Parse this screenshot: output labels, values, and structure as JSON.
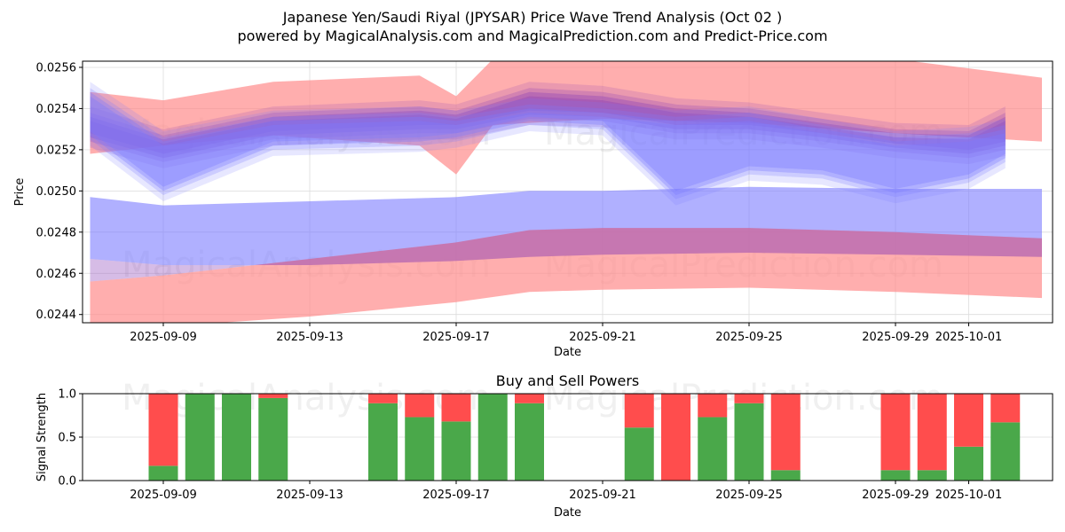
{
  "header": {
    "title": "Japanese Yen/Saudi Riyal (JPYSAR) Price Wave Trend Analysis (Oct 02 )",
    "subtitle": "powered by MagicalAnalysis.com and MagicalPrediction.com and Predict-Price.com"
  },
  "watermarks": [
    "MagicalAnalysis.com",
    "MagicalPrediction.com"
  ],
  "colors": {
    "buy": "#4aa84a",
    "sell": "#ff4d4d",
    "blue_band": "#7b7bff",
    "red_band": "#ff8c8c",
    "purple_band": "#8a3fb8",
    "grid": "#dcdcdc"
  },
  "chart_data": [
    {
      "type": "area",
      "title": "",
      "xlabel": "Date",
      "ylabel": "Price",
      "ylim": [
        0.02436,
        0.02563
      ],
      "xlim": [
        "2025-09-06T20:00",
        "2025-10-03T20:00"
      ],
      "grid": true,
      "y_ticks": [
        "0.0244",
        "0.0246",
        "0.0248",
        "0.0250",
        "0.0252",
        "0.0254",
        "0.0256"
      ],
      "y_tick_values": [
        0.0244,
        0.0246,
        0.0248,
        0.025,
        0.0252,
        0.0254,
        0.0256
      ],
      "x_ticks": [
        "2025-09-09",
        "2025-09-13",
        "2025-09-17",
        "2025-09-21",
        "2025-09-25",
        "2025-09-29",
        "2025-10-01"
      ],
      "bands": [
        {
          "name": "long-term blue channel",
          "color": "blue",
          "x": [
            "2025-09-07",
            "2025-09-09",
            "2025-09-13",
            "2025-09-17",
            "2025-09-19",
            "2025-09-21",
            "2025-09-25",
            "2025-09-29",
            "2025-10-03"
          ],
          "upper": [
            0.02497,
            0.02493,
            0.02495,
            0.02497,
            0.025,
            0.025,
            0.02502,
            0.02501,
            0.02501
          ],
          "lower": [
            0.02467,
            0.02464,
            0.02464,
            0.02466,
            0.02468,
            0.02469,
            0.0247,
            0.02469,
            0.02468
          ]
        },
        {
          "name": "long-term red channel",
          "color": "red",
          "x": [
            "2025-09-07",
            "2025-09-09",
            "2025-09-13",
            "2025-09-17",
            "2025-09-19",
            "2025-09-21",
            "2025-09-25",
            "2025-09-29",
            "2025-10-03"
          ],
          "upper": [
            0.02456,
            0.02459,
            0.02467,
            0.02475,
            0.02481,
            0.02482,
            0.02482,
            0.0248,
            0.02477
          ],
          "lower": [
            0.02433,
            0.02434,
            0.02439,
            0.02446,
            0.02451,
            0.02452,
            0.02453,
            0.02451,
            0.02448
          ]
        },
        {
          "name": "short-term red envelope",
          "color": "red",
          "x": [
            "2025-09-07",
            "2025-09-09",
            "2025-09-12",
            "2025-09-16",
            "2025-09-17",
            "2025-09-18",
            "2025-09-21",
            "2025-09-25",
            "2025-09-29",
            "2025-10-03"
          ],
          "upper": [
            0.02548,
            0.02544,
            0.02553,
            0.02556,
            0.02546,
            0.02564,
            0.02566,
            0.02566,
            0.02564,
            0.02555
          ],
          "lower": [
            0.02518,
            0.02522,
            0.02527,
            0.02522,
            0.02508,
            0.02532,
            0.02535,
            0.02533,
            0.02528,
            0.02524
          ]
        },
        {
          "name": "short-term purple waves",
          "color": "purple",
          "x": [
            "2025-09-07",
            "2025-09-09",
            "2025-09-12",
            "2025-09-16",
            "2025-09-17",
            "2025-09-19",
            "2025-09-21",
            "2025-09-23",
            "2025-09-25",
            "2025-09-27",
            "2025-09-29",
            "2025-10-01",
            "2025-10-02"
          ],
          "upper": [
            0.02536,
            0.02525,
            0.02536,
            0.02539,
            0.02537,
            0.02548,
            0.02546,
            0.0254,
            0.02538,
            0.02533,
            0.02528,
            0.02527,
            0.02536
          ],
          "lower": [
            0.02526,
            0.02516,
            0.02527,
            0.0253,
            0.0253,
            0.02537,
            0.02536,
            0.0253,
            0.0253,
            0.02526,
            0.02521,
            0.02518,
            0.02522
          ]
        },
        {
          "name": "short-term blue waves",
          "color": "blue",
          "x": [
            "2025-09-07",
            "2025-09-09",
            "2025-09-12",
            "2025-09-16",
            "2025-09-17",
            "2025-09-19",
            "2025-09-21",
            "2025-09-23",
            "2025-09-25",
            "2025-09-27",
            "2025-09-29",
            "2025-10-01",
            "2025-10-02"
          ],
          "upper": [
            0.02548,
            0.02524,
            0.02534,
            0.02536,
            0.02534,
            0.0254,
            0.02538,
            0.02534,
            0.02536,
            0.0253,
            0.02524,
            0.02526,
            0.0253
          ],
          "lower": [
            0.02527,
            0.025,
            0.02522,
            0.02524,
            0.02526,
            0.02534,
            0.02532,
            0.02498,
            0.0251,
            0.02508,
            0.02499,
            0.02506,
            0.02516
          ]
        }
      ]
    },
    {
      "type": "bar",
      "title": "Buy and Sell Powers",
      "xlabel": "Date",
      "ylabel": "Signal Strength",
      "ylim": [
        0,
        1.0
      ],
      "y_ticks": [
        "0.0",
        "0.5",
        "1.0"
      ],
      "y_tick_values": [
        0,
        0.5,
        1.0
      ],
      "x_ticks": [
        "2025-09-09",
        "2025-09-13",
        "2025-09-17",
        "2025-09-21",
        "2025-09-25",
        "2025-09-29",
        "2025-10-01"
      ],
      "grid": true,
      "categories": [
        "2025-09-09",
        "2025-09-10",
        "2025-09-11",
        "2025-09-12",
        "2025-09-15",
        "2025-09-16",
        "2025-09-17",
        "2025-09-18",
        "2025-09-19",
        "2025-09-22",
        "2025-09-23",
        "2025-09-24",
        "2025-09-25",
        "2025-09-26",
        "2025-09-29",
        "2025-09-30",
        "2025-10-01",
        "2025-10-02"
      ],
      "series": [
        {
          "name": "Buy",
          "values": [
            0.17,
            1.0,
            1.0,
            0.95,
            0.89,
            0.73,
            0.68,
            1.0,
            0.89,
            0.61,
            0.0,
            0.73,
            0.89,
            0.12,
            0.12,
            0.12,
            0.39,
            0.67
          ]
        },
        {
          "name": "Sell",
          "values": [
            0.83,
            0.0,
            0.0,
            0.05,
            0.11,
            0.27,
            0.32,
            0.0,
            0.11,
            0.39,
            1.0,
            0.27,
            0.11,
            0.88,
            0.88,
            0.88,
            0.61,
            0.33
          ]
        }
      ]
    }
  ]
}
